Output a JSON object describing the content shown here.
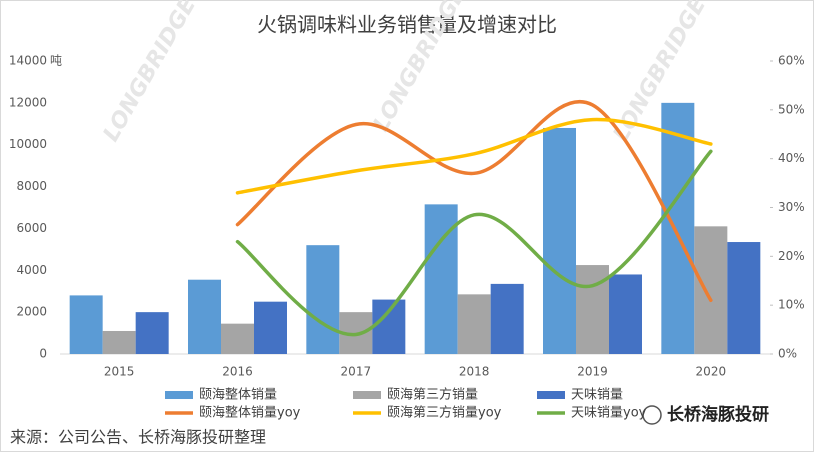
{
  "chart_data": {
    "type": "bar-line",
    "title": "火锅调味料业务销售量及增速对比",
    "y_unit": "吨",
    "categories": [
      "2015",
      "2016",
      "2017",
      "2018",
      "2019",
      "2020"
    ],
    "series": [
      {
        "name": "颐海整体销量",
        "type": "bar",
        "color": "#5b9bd5",
        "values": [
          2800,
          3550,
          5200,
          7150,
          10800,
          12000
        ]
      },
      {
        "name": "颐海第三方销量",
        "type": "bar",
        "color": "#a5a5a5",
        "values": [
          1100,
          1450,
          2000,
          2850,
          4250,
          6100
        ]
      },
      {
        "name": "天味销量",
        "type": "bar",
        "color": "#4472c4",
        "values": [
          2000,
          2500,
          2600,
          3350,
          3800,
          5350
        ]
      },
      {
        "name": "颐海整体销量yoy",
        "type": "line",
        "axis": "y2",
        "color": "#ed7d31",
        "values": [
          null,
          26.5,
          47,
          37,
          51,
          11
        ]
      },
      {
        "name": "颐海第三方销量yoy",
        "type": "line",
        "axis": "y2",
        "color": "#ffc000",
        "values": [
          null,
          33,
          37.5,
          41,
          48,
          43
        ]
      },
      {
        "name": "天味销量yoy",
        "type": "line",
        "axis": "y2",
        "color": "#70ad47",
        "values": [
          null,
          23,
          4,
          28.5,
          14,
          41.5
        ]
      }
    ],
    "ylim": [
      0,
      14000
    ],
    "yticks": [
      0,
      2000,
      4000,
      6000,
      8000,
      10000,
      12000,
      14000
    ],
    "y2lim": [
      0,
      60
    ],
    "y2ticks": [
      {
        "value": 0,
        "label": "0%"
      },
      {
        "value": 10,
        "label": "10%"
      },
      {
        "value": 20,
        "label": "20%"
      },
      {
        "value": 30,
        "label": "30%"
      },
      {
        "value": 40,
        "label": "40%"
      },
      {
        "value": 50,
        "label": "50%"
      },
      {
        "value": 60,
        "label": "60%"
      }
    ],
    "grid": false,
    "legend": "bottom",
    "watermark": "LONGBRIDGE DolphinResearch",
    "source": "来源：公司公告、长桥海豚投研整理",
    "logo": "长桥海豚投研"
  }
}
